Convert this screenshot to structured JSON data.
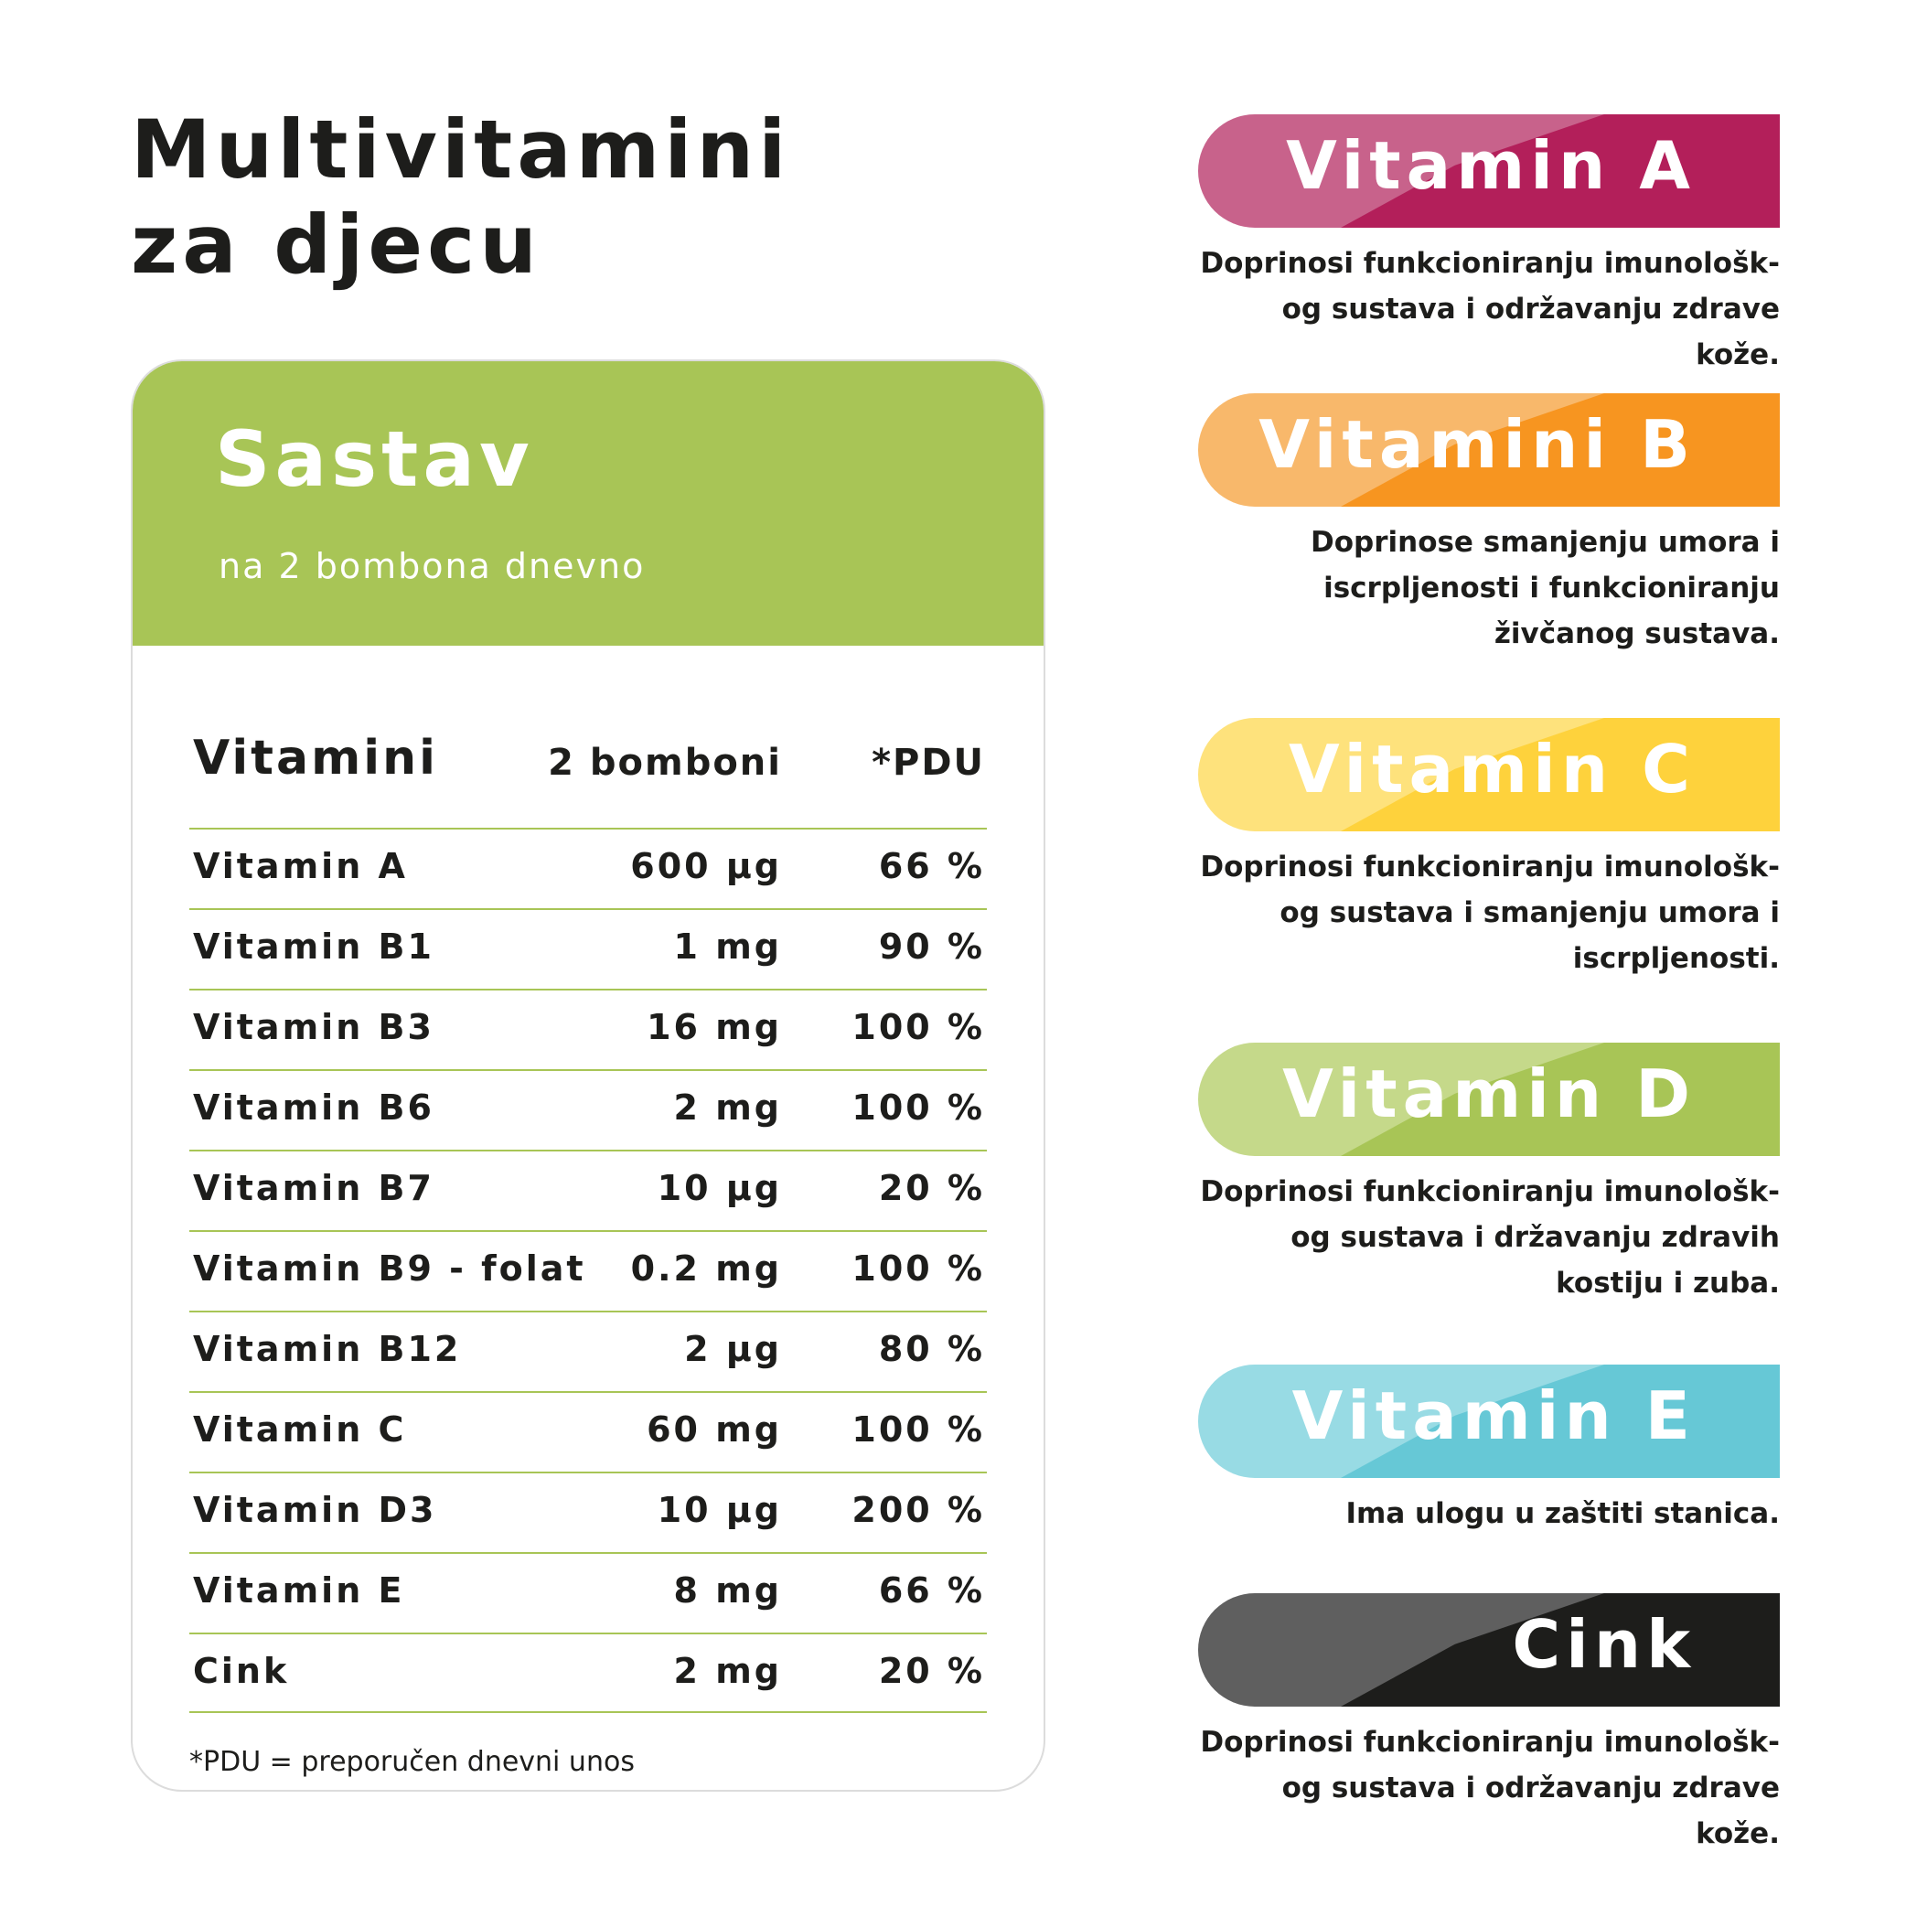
{
  "title": {
    "line1": "Multivitamini",
    "line2": "za djecu"
  },
  "card": {
    "title": "Sastav",
    "subtitle": "na 2 bombona dnevno",
    "headers": {
      "name": "Vitamini",
      "amount": "2 bomboni",
      "pdu": "*PDU"
    },
    "rows": [
      {
        "name": "Vitamin A",
        "amount": "600 µg",
        "pdu": "66 %"
      },
      {
        "name": "Vitamin B1",
        "amount": "1 mg",
        "pdu": "90 %"
      },
      {
        "name": "Vitamin B3",
        "amount": "16 mg",
        "pdu": "100 %"
      },
      {
        "name": "Vitamin B6",
        "amount": "2 mg",
        "pdu": "100 %"
      },
      {
        "name": "Vitamin B7",
        "amount": "10 µg",
        "pdu": "20 %"
      },
      {
        "name": "Vitamin B9 - folat",
        "amount": "0.2 mg",
        "pdu": "100 %"
      },
      {
        "name": "Vitamin B12",
        "amount": "2 µg",
        "pdu": "80 %"
      },
      {
        "name": "Vitamin C",
        "amount": "60 mg",
        "pdu": "100 %"
      },
      {
        "name": "Vitamin D3",
        "amount": "10 µg",
        "pdu": "200 %"
      },
      {
        "name": "Vitamin E",
        "amount": "8 mg",
        "pdu": "66 %"
      },
      {
        "name": "Cink",
        "amount": "2 mg",
        "pdu": "20 %"
      }
    ],
    "footnote": "*PDU = preporučen dnevni unos",
    "accent_color": "#a8c556"
  },
  "vitamins": [
    {
      "label": "Vitamin A",
      "light": "#c8628b",
      "dark": "#b31f5a",
      "desc": "Doprinosi funkcioniranju imunološk-\nog sustava i održavanju zdrave kože."
    },
    {
      "label": "Vitamini B",
      "light": "#f8b86b",
      "dark": "#f79520",
      "desc": "Doprinose smanjenju umora i\niscrpljenosti i funkcioniranju\nživčanog sustava."
    },
    {
      "label": "Vitamin C",
      "light": "#fee27c",
      "dark": "#fed23c",
      "desc": "Doprinosi funkcioniranju imunološk-\nog sustava i smanjenju umora i\niscrpljenosti."
    },
    {
      "label": "Vitamin D",
      "light": "#c5d98a",
      "dark": "#a8c556",
      "desc": "Doprinosi funkcioniranju imunološk-\nog sustava i državanju zdravih\nkostiju i zuba."
    },
    {
      "label": "Vitamin E",
      "light": "#98dbe4",
      "dark": "#66c8d6",
      "desc": "Ima ulogu u zaštiti stanica."
    },
    {
      "label": "Cink",
      "light": "#5f5f5f",
      "dark": "#1d1d1b",
      "desc": "Doprinosi funkcioniranju imunološk-\nog sustava i održavanju zdrave kože."
    }
  ]
}
